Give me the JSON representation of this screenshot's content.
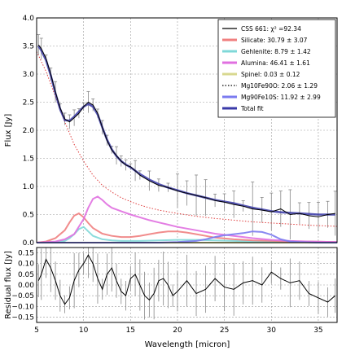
{
  "chart_data": [
    {
      "type": "line",
      "xlabel": "",
      "ylabel": "Flux [Jy]",
      "xlim": [
        5,
        37
      ],
      "ylim": [
        0,
        4.0
      ],
      "grid": true,
      "legend_position": "top-right",
      "x_ticks": [
        "5",
        "10",
        "15",
        "20",
        "25",
        "30",
        "35"
      ],
      "y_ticks": [
        "0.0",
        "0.5",
        "1.0",
        "1.5",
        "2.0",
        "2.5",
        "3.0",
        "3.5",
        "4.0"
      ],
      "legend": [
        {
          "label": "CSS 661: χ² =92.34",
          "color": "#000000",
          "style": "solid"
        },
        {
          "label": "Silicate: 30.79 ± 3.07",
          "color": "#f08080",
          "style": "solid"
        },
        {
          "label": "Gehlenite: 8.79 ± 1.42",
          "color": "#7fd8d8",
          "style": "solid"
        },
        {
          "label": "Alumina: 46.41 ± 1.61",
          "color": "#e070e0",
          "style": "solid"
        },
        {
          "label": "Spinel: 0.03 ± 0.12",
          "color": "#d8d890",
          "style": "solid"
        },
        {
          "label": "Mg10Fe90O: 2.06 ± 1.29",
          "color": "#000000",
          "style": "dotted"
        },
        {
          "label": "Mg90Fe10S: 11.92 ± 2.99",
          "color": "#7b7bf0",
          "style": "solid"
        },
        {
          "label": "Total fit",
          "color": "#3a3aa8",
          "style": "solid"
        }
      ],
      "series": [
        {
          "name": "CSS 661",
          "color": "#000000",
          "has_error_bars": true,
          "x": [
            5.2,
            5.5,
            6.0,
            6.5,
            7.0,
            7.5,
            8.0,
            8.5,
            9.0,
            9.5,
            10.0,
            10.5,
            11.0,
            11.5,
            12.0,
            12.5,
            13.0,
            13.5,
            14.0,
            14.5,
            15.0,
            15.5,
            16.0,
            17.0,
            18.0,
            19.0,
            20.0,
            21.0,
            22.0,
            23.0,
            24.0,
            25.0,
            26.0,
            27.0,
            28.0,
            29.0,
            30.0,
            31.0,
            32.0,
            33.0,
            34.0,
            35.0,
            36.0,
            36.8
          ],
          "y": [
            3.52,
            3.45,
            3.28,
            3.0,
            2.68,
            2.4,
            2.2,
            2.15,
            2.22,
            2.3,
            2.42,
            2.5,
            2.45,
            2.3,
            2.05,
            1.82,
            1.65,
            1.55,
            1.45,
            1.38,
            1.35,
            1.28,
            1.2,
            1.1,
            1.02,
            0.98,
            0.92,
            0.88,
            0.84,
            0.8,
            0.75,
            0.72,
            0.68,
            0.65,
            0.6,
            0.58,
            0.55,
            0.6,
            0.5,
            0.52,
            0.48,
            0.46,
            0.5,
            0.52
          ]
        },
        {
          "name": "Silicate",
          "color": "#f08080",
          "x": [
            5,
            6,
            7,
            8,
            8.5,
            9,
            9.5,
            10,
            10.5,
            11,
            12,
            13,
            14,
            15,
            16,
            17,
            18,
            19,
            20,
            21,
            22,
            23,
            24,
            26,
            28,
            30,
            32,
            34,
            37
          ],
          "y": [
            0.0,
            0.02,
            0.08,
            0.22,
            0.36,
            0.48,
            0.52,
            0.45,
            0.35,
            0.26,
            0.16,
            0.12,
            0.1,
            0.1,
            0.12,
            0.15,
            0.18,
            0.2,
            0.2,
            0.18,
            0.15,
            0.12,
            0.09,
            0.06,
            0.04,
            0.03,
            0.02,
            0.02,
            0.01
          ]
        },
        {
          "name": "Gehlenite",
          "color": "#7fd8d8",
          "x": [
            5,
            7,
            8,
            8.5,
            9,
            9.5,
            10,
            10.5,
            11,
            12,
            13,
            14,
            16,
            18,
            20,
            22,
            24,
            26,
            28,
            30,
            32,
            34,
            37
          ],
          "y": [
            0.0,
            0.01,
            0.03,
            0.08,
            0.15,
            0.24,
            0.28,
            0.2,
            0.12,
            0.06,
            0.04,
            0.03,
            0.03,
            0.04,
            0.05,
            0.05,
            0.04,
            0.03,
            0.02,
            0.02,
            0.01,
            0.01,
            0.01
          ]
        },
        {
          "name": "Alumina",
          "color": "#e070e0",
          "x": [
            5,
            7,
            8,
            9,
            10,
            10.5,
            11,
            11.5,
            12,
            12.5,
            13,
            14,
            15,
            16,
            17,
            18,
            19,
            20,
            22,
            24,
            26,
            28,
            30,
            32,
            34,
            37
          ],
          "y": [
            0.0,
            0.02,
            0.06,
            0.15,
            0.42,
            0.62,
            0.78,
            0.82,
            0.76,
            0.68,
            0.62,
            0.56,
            0.5,
            0.45,
            0.4,
            0.36,
            0.32,
            0.28,
            0.22,
            0.16,
            0.12,
            0.08,
            0.05,
            0.03,
            0.02,
            0.01
          ]
        },
        {
          "name": "Spinel",
          "color": "#d8d890",
          "x": [
            5,
            10,
            15,
            20,
            25,
            30,
            37
          ],
          "y": [
            0.0,
            0.0,
            0.0,
            0.0,
            0.0,
            0.0,
            0.0
          ]
        },
        {
          "name": "Mg10Fe90O",
          "color": "#dd2a2a",
          "style": "dotted",
          "x": [
            5,
            6,
            7,
            8,
            9,
            10,
            11,
            12,
            13,
            14,
            15,
            16,
            17,
            18,
            19,
            20,
            22,
            24,
            26,
            28,
            30,
            32,
            34,
            37
          ],
          "y": [
            3.4,
            3.05,
            2.6,
            2.15,
            1.75,
            1.45,
            1.2,
            1.02,
            0.9,
            0.8,
            0.73,
            0.67,
            0.62,
            0.58,
            0.55,
            0.52,
            0.47,
            0.43,
            0.4,
            0.37,
            0.35,
            0.33,
            0.31,
            0.29
          ]
        },
        {
          "name": "Mg90Fe10S",
          "color": "#7b7bf0",
          "x": [
            5,
            10,
            15,
            18,
            20,
            22,
            23,
            24,
            25,
            26,
            27,
            28,
            29,
            30,
            31,
            32,
            33,
            35,
            37
          ],
          "y": [
            0.0,
            0.0,
            0.0,
            0.0,
            0.01,
            0.03,
            0.06,
            0.1,
            0.13,
            0.15,
            0.17,
            0.2,
            0.19,
            0.14,
            0.06,
            0.02,
            0.01,
            0.0,
            0.0
          ]
        },
        {
          "name": "Total fit",
          "color": "#3a3aa8",
          "x": [
            5.2,
            5.5,
            6.0,
            6.5,
            7.0,
            7.5,
            8.0,
            8.5,
            9.0,
            9.5,
            10.0,
            10.5,
            11.0,
            11.5,
            12.0,
            12.5,
            13.0,
            13.5,
            14.0,
            14.5,
            15.0,
            16.0,
            17.0,
            18.0,
            19.0,
            20.0,
            21.0,
            22.0,
            23.0,
            24.0,
            25.0,
            26.0,
            27.0,
            28.0,
            29.0,
            30.0,
            31.0,
            32.0,
            33.0,
            34.0,
            35.0,
            36.0,
            36.8
          ],
          "y": [
            3.5,
            3.42,
            3.25,
            2.98,
            2.66,
            2.38,
            2.18,
            2.17,
            2.24,
            2.33,
            2.42,
            2.47,
            2.42,
            2.28,
            2.05,
            1.83,
            1.66,
            1.54,
            1.45,
            1.39,
            1.34,
            1.22,
            1.12,
            1.04,
            0.98,
            0.93,
            0.88,
            0.84,
            0.8,
            0.76,
            0.73,
            0.7,
            0.66,
            0.62,
            0.59,
            0.56,
            0.54,
            0.53,
            0.52,
            0.51,
            0.5,
            0.5,
            0.5
          ]
        }
      ]
    },
    {
      "type": "line",
      "xlabel": "Wavelength [micron]",
      "ylabel": "Residual flux [Jy]",
      "xlim": [
        5,
        37
      ],
      "ylim": [
        -0.175,
        0.175
      ],
      "grid": true,
      "x_ticks": [
        "5",
        "10",
        "15",
        "20",
        "25",
        "30",
        "35"
      ],
      "y_ticks": [
        "0.15",
        "0.10",
        "0.05",
        "0.00",
        "−0.05",
        "−0.10",
        "−0.15"
      ],
      "series": [
        {
          "name": "Residual",
          "color": "#000000",
          "has_error_bars": true,
          "x": [
            5.2,
            5.5,
            6.0,
            6.5,
            7.0,
            7.5,
            8.0,
            8.5,
            9.0,
            9.5,
            10.0,
            10.5,
            11.0,
            11.5,
            12.0,
            12.5,
            13.0,
            13.5,
            14.0,
            14.5,
            15.0,
            15.5,
            16.0,
            16.5,
            17.0,
            17.5,
            18.0,
            18.5,
            19.0,
            19.5,
            20.0,
            21.0,
            22.0,
            23.0,
            24.0,
            25.0,
            26.0,
            27.0,
            28.0,
            29.0,
            30.0,
            31.0,
            32.0,
            33.0,
            34.0,
            35.0,
            36.0,
            36.8
          ],
          "y": [
            0.02,
            0.05,
            0.12,
            0.08,
            0.02,
            -0.05,
            -0.09,
            -0.06,
            0.02,
            0.07,
            0.1,
            0.14,
            0.1,
            0.03,
            -0.02,
            0.05,
            0.08,
            0.02,
            -0.03,
            -0.05,
            0.03,
            0.05,
            0.0,
            -0.05,
            -0.07,
            -0.04,
            0.02,
            0.03,
            0.0,
            -0.05,
            -0.03,
            0.02,
            -0.04,
            -0.02,
            0.03,
            -0.01,
            -0.02,
            0.01,
            0.02,
            0.0,
            0.06,
            0.03,
            0.01,
            0.02,
            -0.04,
            -0.06,
            -0.08,
            -0.05
          ]
        }
      ]
    }
  ]
}
